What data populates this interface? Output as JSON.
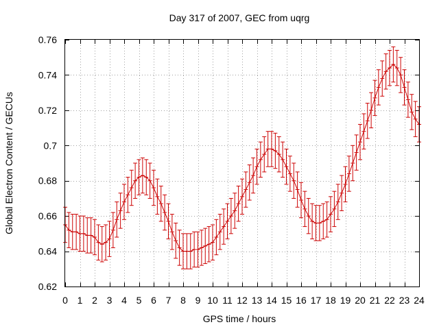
{
  "chart_data": {
    "type": "line",
    "title": "Day 317 of 2007, GEC from uqrg",
    "xlabel": "GPS time / hours",
    "ylabel": "Global Electron Content / GECUs",
    "xlim": [
      0,
      24
    ],
    "ylim": [
      0.62,
      0.76
    ],
    "grid": true,
    "series_color": "#cc0000",
    "x_ticks": [
      0,
      1,
      2,
      3,
      4,
      5,
      6,
      7,
      8,
      9,
      10,
      11,
      12,
      13,
      14,
      15,
      16,
      17,
      18,
      19,
      20,
      21,
      22,
      23,
      24
    ],
    "y_ticks": [
      0.62,
      0.64,
      0.66,
      0.68,
      0.7,
      0.72,
      0.74,
      0.76
    ],
    "x_tick_labels": [
      "0",
      "1",
      "2",
      "3",
      "4",
      "5",
      "6",
      "7",
      "8",
      "9",
      "10",
      "11",
      "12",
      "13",
      "14",
      "15",
      "16",
      "17",
      "18",
      "19",
      "20",
      "21",
      "22",
      "23",
      "24"
    ],
    "y_tick_labels": [
      "0.62",
      "0.64",
      "0.66",
      "0.68",
      "0.7",
      "0.72",
      "0.74",
      "0.76"
    ],
    "series": [
      {
        "error": 0.01,
        "x": [
          0,
          0.25,
          0.5,
          0.75,
          1,
          1.25,
          1.5,
          1.75,
          2,
          2.25,
          2.5,
          2.75,
          3,
          3.25,
          3.5,
          3.75,
          4,
          4.25,
          4.5,
          4.75,
          5,
          5.25,
          5.5,
          5.75,
          6,
          6.25,
          6.5,
          6.75,
          7,
          7.25,
          7.5,
          7.75,
          8,
          8.25,
          8.5,
          8.75,
          9,
          9.25,
          9.5,
          9.75,
          10,
          10.25,
          10.5,
          10.75,
          11,
          11.25,
          11.5,
          11.75,
          12,
          12.25,
          12.5,
          12.75,
          13,
          13.25,
          13.5,
          13.75,
          14,
          14.25,
          14.5,
          14.75,
          15,
          15.25,
          15.5,
          15.75,
          16,
          16.25,
          16.5,
          16.75,
          17,
          17.25,
          17.5,
          17.75,
          18,
          18.25,
          18.5,
          18.75,
          19,
          19.25,
          19.5,
          19.75,
          20,
          20.25,
          20.5,
          20.75,
          21,
          21.25,
          21.5,
          21.75,
          22,
          22.25,
          22.5,
          22.75,
          23,
          23.25,
          23.5,
          23.75,
          24
        ],
        "y": [
          0.655,
          0.652,
          0.651,
          0.651,
          0.65,
          0.65,
          0.649,
          0.649,
          0.648,
          0.645,
          0.644,
          0.645,
          0.647,
          0.652,
          0.658,
          0.663,
          0.668,
          0.672,
          0.676,
          0.68,
          0.682,
          0.683,
          0.682,
          0.68,
          0.676,
          0.671,
          0.667,
          0.662,
          0.657,
          0.651,
          0.646,
          0.642,
          0.64,
          0.64,
          0.64,
          0.641,
          0.641,
          0.642,
          0.643,
          0.644,
          0.645,
          0.648,
          0.651,
          0.654,
          0.657,
          0.66,
          0.663,
          0.667,
          0.671,
          0.675,
          0.679,
          0.683,
          0.688,
          0.692,
          0.695,
          0.698,
          0.698,
          0.697,
          0.695,
          0.692,
          0.688,
          0.684,
          0.68,
          0.675,
          0.669,
          0.664,
          0.66,
          0.657,
          0.656,
          0.656,
          0.657,
          0.658,
          0.661,
          0.664,
          0.668,
          0.673,
          0.678,
          0.684,
          0.69,
          0.696,
          0.702,
          0.708,
          0.714,
          0.72,
          0.727,
          0.733,
          0.738,
          0.742,
          0.744,
          0.746,
          0.744,
          0.74,
          0.733,
          0.726,
          0.719,
          0.715,
          0.712
        ]
      }
    ]
  }
}
